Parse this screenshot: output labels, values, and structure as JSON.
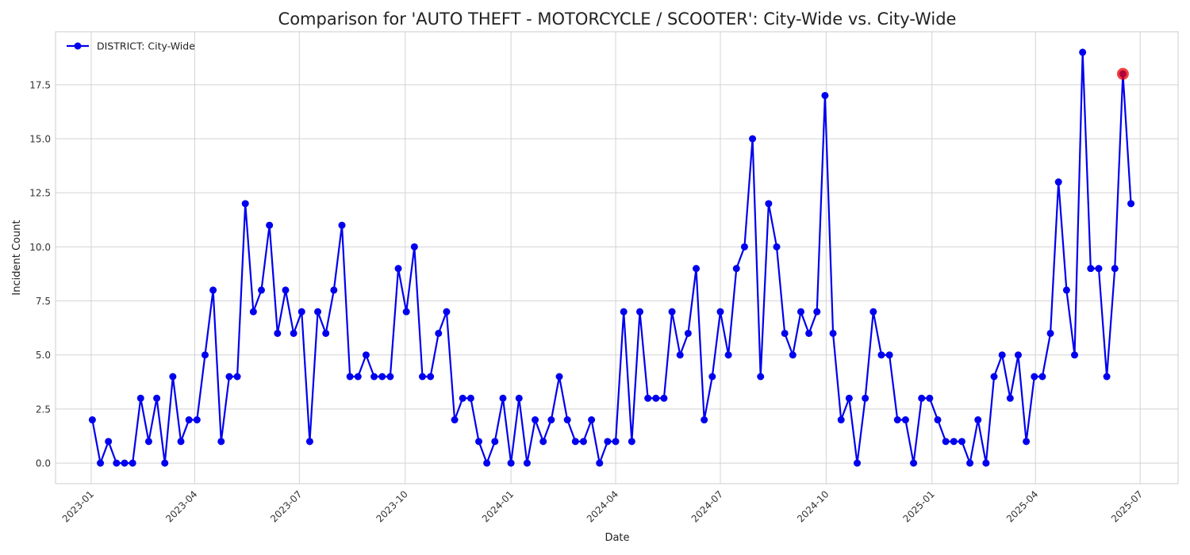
{
  "chart_data": {
    "type": "line",
    "title": "Comparison for 'AUTO THEFT - MOTORCYCLE / SCOOTER': City-Wide vs. City-Wide",
    "xlabel": "Date",
    "ylabel": "Incident Count",
    "xlim": [
      "2022-12-01",
      "2025-08-03"
    ],
    "ylim": [
      -0.95,
      19.95
    ],
    "x_ticks": [
      "2023-01",
      "2023-04",
      "2023-07",
      "2023-10",
      "2024-01",
      "2024-04",
      "2024-07",
      "2024-10",
      "2025-01",
      "2025-04",
      "2025-07"
    ],
    "y_ticks": [
      "0.0",
      "2.5",
      "5.0",
      "7.5",
      "10.0",
      "12.5",
      "15.0",
      "17.5"
    ],
    "grid": true,
    "legend": "top-left",
    "series": [
      {
        "name": "DISTRICT: City-Wide",
        "color": "#0000ee",
        "marker": "circle",
        "x": [
          "2023-01-02",
          "2023-01-09",
          "2023-01-16",
          "2023-01-23",
          "2023-01-30",
          "2023-02-06",
          "2023-02-13",
          "2023-02-20",
          "2023-02-27",
          "2023-03-06",
          "2023-03-13",
          "2023-03-20",
          "2023-03-27",
          "2023-04-03",
          "2023-04-10",
          "2023-04-17",
          "2023-04-24",
          "2023-05-01",
          "2023-05-08",
          "2023-05-15",
          "2023-05-22",
          "2023-05-29",
          "2023-06-05",
          "2023-06-12",
          "2023-06-19",
          "2023-06-26",
          "2023-07-03",
          "2023-07-10",
          "2023-07-17",
          "2023-07-24",
          "2023-07-31",
          "2023-08-07",
          "2023-08-14",
          "2023-08-21",
          "2023-08-28",
          "2023-09-04",
          "2023-09-11",
          "2023-09-18",
          "2023-09-25",
          "2023-10-02",
          "2023-10-09",
          "2023-10-16",
          "2023-10-23",
          "2023-10-30",
          "2023-11-06",
          "2023-11-13",
          "2023-11-20",
          "2023-11-27",
          "2023-12-04",
          "2023-12-11",
          "2023-12-18",
          "2023-12-25",
          "2024-01-01",
          "2024-01-08",
          "2024-01-15",
          "2024-01-22",
          "2024-01-29",
          "2024-02-05",
          "2024-02-12",
          "2024-02-19",
          "2024-02-26",
          "2024-03-04",
          "2024-03-11",
          "2024-03-18",
          "2024-03-25",
          "2024-04-01",
          "2024-04-08",
          "2024-04-15",
          "2024-04-22",
          "2024-04-29",
          "2024-05-06",
          "2024-05-13",
          "2024-05-20",
          "2024-05-27",
          "2024-06-03",
          "2024-06-10",
          "2024-06-17",
          "2024-06-24",
          "2024-07-01",
          "2024-07-08",
          "2024-07-15",
          "2024-07-22",
          "2024-07-29",
          "2024-08-05",
          "2024-08-12",
          "2024-08-19",
          "2024-08-26",
          "2024-09-02",
          "2024-09-09",
          "2024-09-16",
          "2024-09-23",
          "2024-09-30",
          "2024-10-07",
          "2024-10-14",
          "2024-10-21",
          "2024-10-28",
          "2024-11-04",
          "2024-11-11",
          "2024-11-18",
          "2024-11-25",
          "2024-12-02",
          "2024-12-09",
          "2024-12-16",
          "2024-12-23",
          "2024-12-30",
          "2025-01-06",
          "2025-01-13",
          "2025-01-20",
          "2025-01-27",
          "2025-02-03",
          "2025-02-10",
          "2025-02-17",
          "2025-02-24",
          "2025-03-03",
          "2025-03-10",
          "2025-03-17",
          "2025-03-24",
          "2025-03-31",
          "2025-04-07",
          "2025-04-14",
          "2025-04-21",
          "2025-04-28",
          "2025-05-05",
          "2025-05-12",
          "2025-05-19",
          "2025-05-26",
          "2025-06-02",
          "2025-06-09",
          "2025-06-16",
          "2025-06-23"
        ],
        "values": [
          2,
          0,
          1,
          0,
          0,
          0,
          3,
          1,
          3,
          0,
          4,
          1,
          2,
          2,
          5,
          8,
          1,
          4,
          4,
          12,
          7,
          8,
          11,
          6,
          8,
          6,
          7,
          1,
          7,
          6,
          8,
          11,
          4,
          4,
          5,
          4,
          4,
          4,
          9,
          7,
          10,
          4,
          4,
          6,
          7,
          2,
          3,
          3,
          1,
          0,
          1,
          3,
          0,
          3,
          0,
          2,
          1,
          2,
          4,
          2,
          1,
          1,
          2,
          0,
          1,
          1,
          7,
          1,
          7,
          3,
          3,
          3,
          7,
          5,
          6,
          9,
          2,
          4,
          7,
          5,
          9,
          10,
          15,
          4,
          12,
          10,
          6,
          5,
          7,
          6,
          7,
          17,
          6,
          2,
          3,
          0,
          3,
          7,
          5,
          5,
          2,
          2,
          0,
          3,
          3,
          2,
          1,
          1,
          1,
          0,
          2,
          0,
          4,
          5,
          3,
          5,
          1,
          4,
          4,
          6,
          13,
          8,
          5,
          19,
          9,
          9,
          4,
          9,
          18,
          12
        ]
      }
    ],
    "highlight": {
      "x": "2025-06-16",
      "value": 18,
      "color": "#ee0000"
    }
  }
}
